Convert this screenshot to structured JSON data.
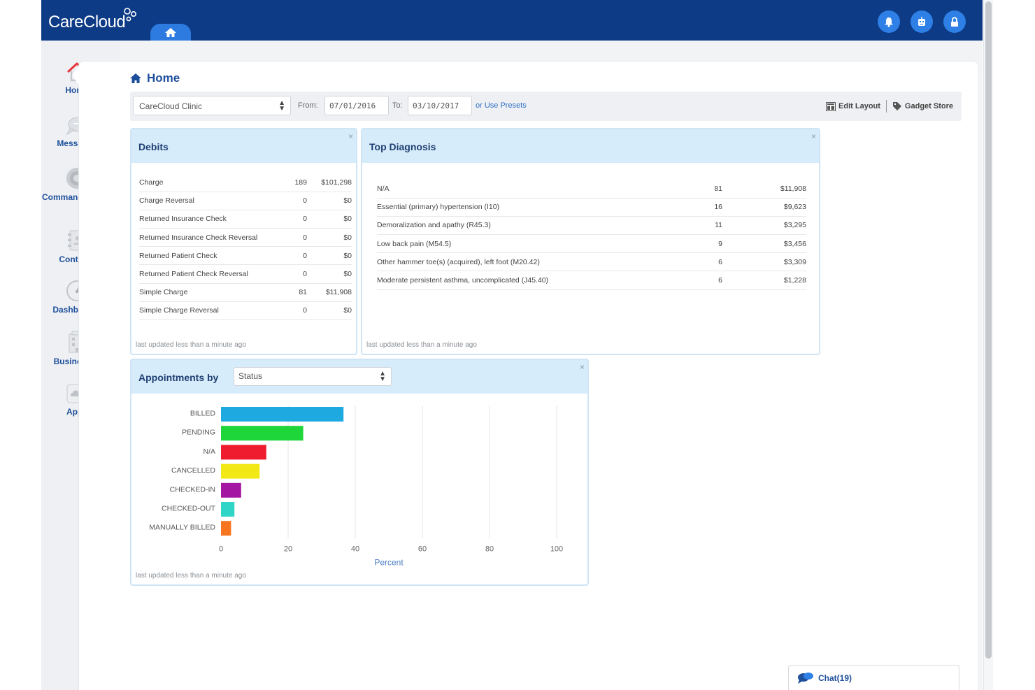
{
  "app": {
    "name": "CareCloud"
  },
  "sidebar": {
    "items": [
      {
        "label": "Home",
        "icon": "home-icon"
      },
      {
        "label": "Messages",
        "icon": "chat-bubble-icon"
      },
      {
        "label": "Command Center",
        "icon": "globe-icon"
      },
      {
        "label": "Contacts",
        "icon": "address-book-icon"
      },
      {
        "label": "Dashboards",
        "icon": "gauge-icon"
      },
      {
        "label": "Businesses",
        "icon": "building-icon"
      },
      {
        "label": "Apps",
        "icon": "cloud-icon"
      }
    ]
  },
  "page": {
    "title": "Home"
  },
  "filters": {
    "clinic": "CareCloud Clinic",
    "from_label": "From:",
    "from": "07/01/2016",
    "to_label": "To:",
    "to": "03/10/2017",
    "presets_link": "or Use Presets",
    "edit_layout": "Edit Layout",
    "gadget_store": "Gadget Store"
  },
  "debits": {
    "title": "Debits",
    "close": "×",
    "rows": [
      {
        "label": "Charge",
        "count": "189",
        "amount": "$101,298"
      },
      {
        "label": "Charge Reversal",
        "count": "0",
        "amount": "$0"
      },
      {
        "label": "Returned Insurance Check",
        "count": "0",
        "amount": "$0"
      },
      {
        "label": "Returned Insurance Check Reversal",
        "count": "0",
        "amount": "$0"
      },
      {
        "label": "Returned Patient Check",
        "count": "0",
        "amount": "$0"
      },
      {
        "label": "Returned Patient Check Reversal",
        "count": "0",
        "amount": "$0"
      },
      {
        "label": "Simple Charge",
        "count": "81",
        "amount": "$11,908"
      },
      {
        "label": "Simple Charge Reversal",
        "count": "0",
        "amount": "$0"
      }
    ],
    "footnote": "last updated less than a minute ago"
  },
  "top_diagnosis": {
    "title": "Top Diagnosis",
    "close": "×",
    "rows": [
      {
        "label": "N/A",
        "count": "81",
        "amount": "$11,908"
      },
      {
        "label": "Essential (primary) hypertension (I10)",
        "count": "16",
        "amount": "$9,623"
      },
      {
        "label": "Demoralization and apathy (R45.3)",
        "count": "11",
        "amount": "$3,295"
      },
      {
        "label": "Low back pain (M54.5)",
        "count": "9",
        "amount": "$3,456"
      },
      {
        "label": "Other hammer toe(s) (acquired), left foot (M20.42)",
        "count": "6",
        "amount": "$3,309"
      },
      {
        "label": "Moderate persistent asthma, uncomplicated (J45.40)",
        "count": "6",
        "amount": "$1,228"
      }
    ],
    "footnote": "last updated less than a minute ago"
  },
  "appointments": {
    "title": "Appointments by",
    "group_by": "Status",
    "close": "×",
    "footnote": "last updated less than a minute ago"
  },
  "chart_data": {
    "type": "bar",
    "orientation": "horizontal",
    "categories": [
      "BILLED",
      "PENDING",
      "N/A",
      "CANCELLED",
      "CHECKED-IN",
      "CHECKED-OUT",
      "MANUALLY BILLED"
    ],
    "values": [
      36.5,
      24.5,
      13.5,
      11.5,
      6,
      4,
      3
    ],
    "colors": [
      "#1fa9e1",
      "#1ed63a",
      "#ee1c2e",
      "#f2e816",
      "#a415a2",
      "#2fd6c8",
      "#f7751e"
    ],
    "xlabel": "Percent",
    "ylabel": "",
    "xlim": [
      0,
      100
    ],
    "xticks": [
      "0",
      "20",
      "40",
      "60",
      "80",
      "100"
    ],
    "grid": true
  },
  "chat": {
    "label": "Chat(19)"
  }
}
